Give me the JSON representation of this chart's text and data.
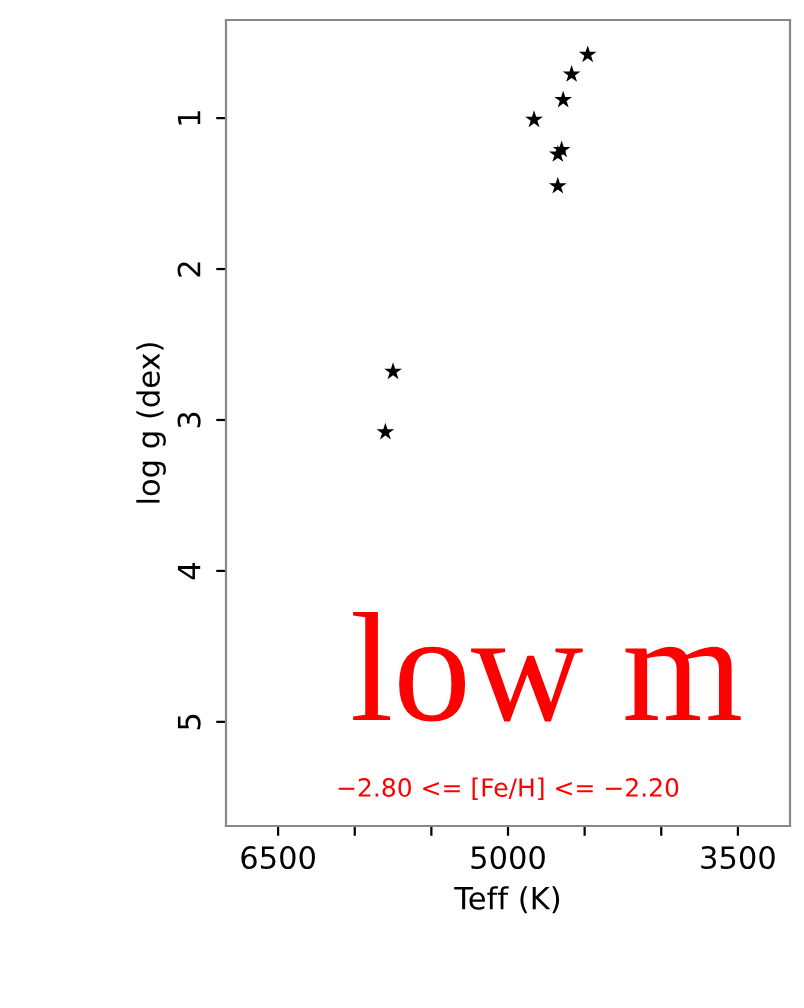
{
  "chart_data": {
    "type": "scatter",
    "xlabel": "Teff (K)",
    "ylabel": "log g (dex)",
    "x": [
      4480,
      4585,
      4640,
      4830,
      4650,
      4675,
      4675,
      5750,
      5800
    ],
    "values": [
      0.58,
      0.71,
      0.88,
      1.01,
      1.21,
      1.24,
      1.45,
      2.68,
      3.08
    ],
    "color": "#000000",
    "marker": "star",
    "grid": false,
    "legend": false,
    "xlim": [
      6840,
      3160
    ],
    "xticks": [
      6500,
      {
        "value": 6000,
        "label": null
      },
      {
        "value": 5500,
        "label": null
      },
      5000,
      {
        "value": 4500,
        "label": null
      },
      {
        "value": 4000,
        "label": null
      },
      3500
    ],
    "ylim": [
      5.69,
      0.35
    ],
    "yticks": [
      1,
      2,
      3,
      4,
      5
    ],
    "annotations": [
      "−2.80 <= [Fe/H] <= −2.20",
      "low m"
    ]
  }
}
